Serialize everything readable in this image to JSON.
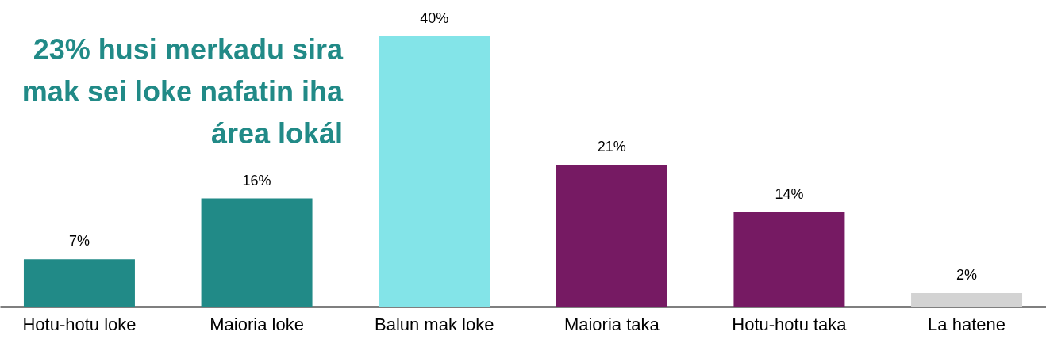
{
  "chart_data": {
    "type": "bar",
    "title": "23% husi merkadu sira mak sei loke nafatin iha área lokál",
    "categories": [
      "Hotu-hotu loke",
      "Maioria loke",
      "Balun mak loke",
      "Maioria taka",
      "Hotu-hotu taka",
      "La hatene"
    ],
    "values": [
      7,
      16,
      40,
      21,
      14,
      2
    ],
    "colors": [
      "#218a87",
      "#218a87",
      "#83e4e8",
      "#761a63",
      "#761a63",
      "#d3d3d3"
    ],
    "value_labels": [
      "7%",
      "16%",
      "40%",
      "21%",
      "14%",
      "2%"
    ],
    "grid": false
  }
}
